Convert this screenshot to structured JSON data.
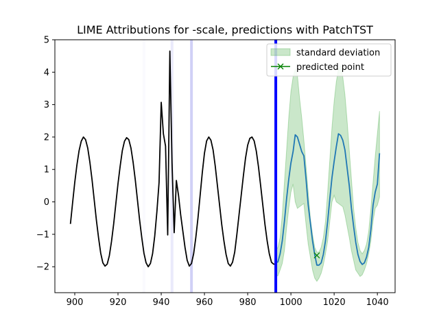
{
  "chart_data": {
    "type": "line",
    "title": "LIME Attributions for -scale, predictions with PatchTST",
    "xlabel": "",
    "ylabel": "",
    "xlim": [
      890.8,
      1048.2
    ],
    "ylim": [
      -2.8,
      5.0
    ],
    "x_ticks": [
      900,
      920,
      940,
      960,
      980,
      1000,
      1020,
      1040
    ],
    "y_ticks": [
      -2,
      -1,
      0,
      1,
      2,
      3,
      4,
      5
    ],
    "x_tick_labels": [
      "900",
      "920",
      "940",
      "960",
      "980",
      "1000",
      "1020",
      "1040"
    ],
    "y_tick_labels": [
      "−2",
      "−1",
      "0",
      "1",
      "2",
      "3",
      "4",
      "5"
    ],
    "grid": false,
    "legend_position": "top-right",
    "legend": {
      "std_label": "standard deviation",
      "point_label": "predicted point"
    },
    "colors": {
      "history": "#000000",
      "forecast": "#1f77b4",
      "std_fill": "#2ca02c",
      "marker": "#008000",
      "cutoff": "#0000ff",
      "attribution": "#aaaaee"
    },
    "history": {
      "x": [
        898,
        899,
        900,
        901,
        902,
        903,
        904,
        905,
        906,
        907,
        908,
        909,
        910,
        911,
        912,
        913,
        914,
        915,
        916,
        917,
        918,
        919,
        920,
        921,
        922,
        923,
        924,
        925,
        926,
        927,
        928,
        929,
        930,
        931,
        932,
        933,
        934,
        935,
        936,
        937,
        938,
        939,
        940,
        941,
        942,
        943,
        944,
        945,
        946,
        947,
        948,
        949,
        950,
        951,
        952,
        953,
        954,
        955,
        956,
        957,
        958,
        959,
        960,
        961,
        962,
        963,
        964,
        965,
        966,
        967,
        968,
        969,
        970,
        971,
        972,
        973,
        974,
        975,
        976,
        977,
        978,
        979,
        980,
        981,
        982,
        983,
        984,
        985,
        986,
        987,
        988,
        989,
        990,
        991,
        992,
        993
      ],
      "y": [
        -0.68,
        -0.03,
        0.6,
        1.14,
        1.58,
        1.87,
        2.0,
        1.92,
        1.66,
        1.22,
        0.68,
        0.06,
        -0.56,
        -1.1,
        -1.58,
        -1.88,
        -1.98,
        -1.92,
        -1.66,
        -1.22,
        -0.68,
        -0.06,
        0.56,
        1.1,
        1.58,
        1.87,
        1.98,
        1.92,
        1.66,
        1.22,
        0.68,
        0.06,
        -0.56,
        -1.1,
        -1.58,
        -1.88,
        -2.0,
        -1.9,
        -1.6,
        -1.05,
        -0.3,
        0.6,
        3.07,
        2.1,
        1.72,
        -1.02,
        4.65,
        1.2,
        -0.95,
        0.66,
        0.2,
        -0.4,
        -0.9,
        -1.4,
        -1.8,
        -1.98,
        -1.9,
        -1.6,
        -1.1,
        -0.5,
        0.2,
        0.9,
        1.5,
        1.88,
        2.0,
        1.9,
        1.6,
        1.1,
        0.5,
        -0.1,
        -0.7,
        -1.2,
        -1.62,
        -1.9,
        -1.98,
        -1.86,
        -1.55,
        -1.0,
        -0.4,
        0.2,
        0.8,
        1.35,
        1.75,
        1.96,
        2.0,
        1.88,
        1.56,
        1.08,
        0.5,
        -0.1,
        -0.7,
        -1.2,
        -1.6,
        -1.86,
        -1.92,
        -1.92
      ]
    },
    "forecast": {
      "x": [
        993,
        994,
        995,
        996,
        997,
        998,
        999,
        1000,
        1001,
        1002,
        1003,
        1004,
        1005,
        1006,
        1007,
        1008,
        1009,
        1010,
        1011,
        1012,
        1013,
        1014,
        1015,
        1016,
        1017,
        1018,
        1019,
        1020,
        1021,
        1022,
        1023,
        1024,
        1025,
        1026,
        1027,
        1028,
        1029,
        1030,
        1031,
        1032,
        1033,
        1034,
        1035,
        1036,
        1037,
        1038,
        1039,
        1040,
        1041
      ],
      "y": [
        -1.88,
        -1.85,
        -1.6,
        -1.2,
        -0.6,
        0.1,
        0.7,
        1.2,
        1.55,
        2.07,
        2.0,
        1.78,
        1.55,
        1.42,
        0.7,
        -0.1,
        -0.65,
        -1.2,
        -1.62,
        -1.95,
        -1.95,
        -1.88,
        -1.62,
        -1.2,
        -0.6,
        0.1,
        0.75,
        1.25,
        1.7,
        2.1,
        2.05,
        1.9,
        1.6,
        1.05,
        0.5,
        -0.2,
        -0.75,
        -1.25,
        -1.62,
        -1.84,
        -1.93,
        -1.88,
        -1.7,
        -1.4,
        -0.85,
        -0.1,
        0.3,
        0.55,
        1.5
      ],
      "upper": [
        -1.5,
        -1.4,
        -1.1,
        -0.4,
        0.6,
        1.6,
        2.6,
        3.4,
        3.85,
        4.1,
        3.9,
        3.2,
        2.6,
        1.9,
        1.1,
        0.3,
        -0.5,
        -1.0,
        -1.4,
        -1.55,
        -1.55,
        -1.4,
        -1.1,
        -0.6,
        0.3,
        1.3,
        2.3,
        3.1,
        3.7,
        4.1,
        4.2,
        3.85,
        3.3,
        2.5,
        1.6,
        0.7,
        -0.2,
        -0.8,
        -1.25,
        -1.5,
        -1.6,
        -1.5,
        -1.3,
        -0.9,
        -0.2,
        0.6,
        1.4,
        2.1,
        2.8
      ],
      "lower": [
        -2.28,
        -2.28,
        -2.1,
        -1.9,
        -1.5,
        -0.8,
        -0.2,
        0.3,
        0.55,
        0.0,
        -0.2,
        -0.15,
        -0.1,
        -0.05,
        -0.7,
        -1.3,
        -1.7,
        -2.1,
        -2.35,
        -2.45,
        -2.35,
        -2.2,
        -1.95,
        -1.6,
        -1.2,
        -0.6,
        0.0,
        0.2,
        0.0,
        -0.05,
        -0.1,
        -0.15,
        -0.4,
        -0.75,
        -1.1,
        -1.5,
        -1.8,
        -2.1,
        -2.2,
        -2.3,
        -2.25,
        -2.1,
        -1.9,
        -1.6,
        -1.2,
        -0.6,
        -0.2,
        -0.1,
        0.15
      ]
    },
    "cutoff_x": 993,
    "predicted_point": {
      "x": 1012,
      "y": -1.65
    },
    "attribution_bands": [
      {
        "x": 932,
        "opacity": 0.06
      },
      {
        "x": 945,
        "opacity": 0.25
      },
      {
        "x": 954,
        "opacity": 0.55
      }
    ]
  }
}
